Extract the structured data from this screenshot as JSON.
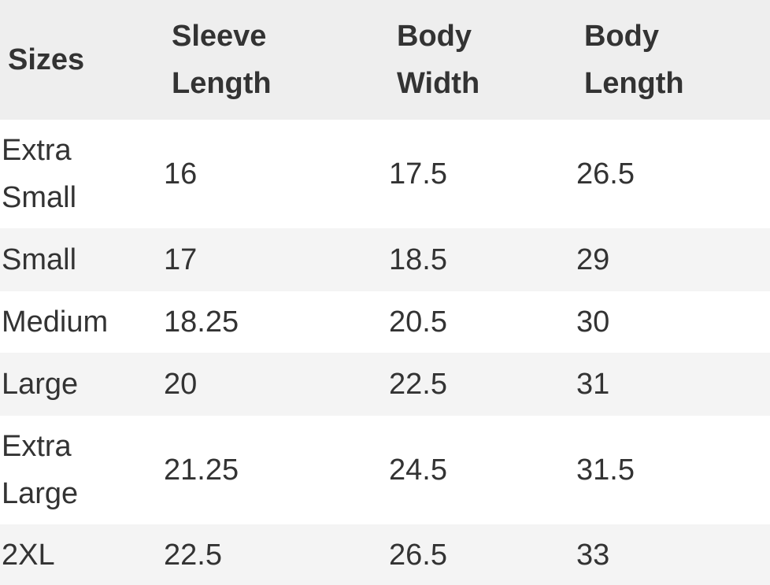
{
  "table": {
    "header": [
      "Sizes",
      "Sleeve Length",
      "Body Width",
      "Body Length"
    ],
    "rows": [
      [
        "Extra Small",
        16,
        17.5,
        26.5
      ],
      [
        "Small",
        17,
        18.5,
        29
      ],
      [
        "Medium",
        18.25,
        20.5,
        30
      ],
      [
        "Large",
        20,
        22.5,
        31
      ],
      [
        "Extra Large",
        21.25,
        24.5,
        31.5
      ],
      [
        "2XL",
        22.5,
        26.5,
        33
      ]
    ]
  }
}
